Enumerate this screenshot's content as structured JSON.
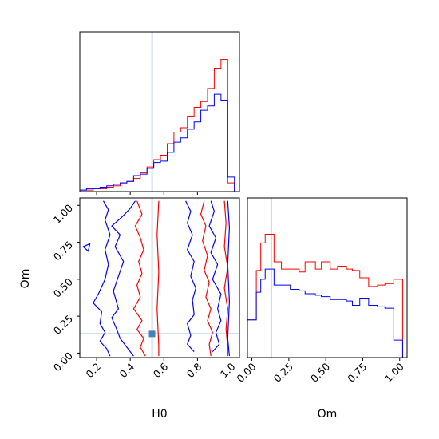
{
  "chart_data": [
    {
      "panel": "H0 marginal",
      "type": "histogram",
      "xlim": [
        0.1,
        1.05
      ],
      "ylim": [
        0,
        1.1
      ],
      "ticks": [
        0.2,
        0.4,
        0.6,
        0.8,
        1.0
      ],
      "truth": 0.53,
      "bin_edges": [
        0.1,
        0.14,
        0.18,
        0.22,
        0.26,
        0.3,
        0.34,
        0.38,
        0.42,
        0.46,
        0.5,
        0.54,
        0.58,
        0.62,
        0.66,
        0.7,
        0.74,
        0.78,
        0.82,
        0.86,
        0.9,
        0.94,
        0.98,
        1.02
      ],
      "series": [
        {
          "color": "#ff0000",
          "values": [
            0.01,
            0.01,
            0.02,
            0.02,
            0.03,
            0.04,
            0.06,
            0.07,
            0.09,
            0.13,
            0.17,
            0.22,
            0.25,
            0.33,
            0.41,
            0.44,
            0.52,
            0.58,
            0.62,
            0.71,
            0.85,
            0.91,
            0.06
          ]
        },
        {
          "color": "#0000ff",
          "values": [
            0.01,
            0.02,
            0.02,
            0.03,
            0.04,
            0.05,
            0.06,
            0.07,
            0.11,
            0.12,
            0.16,
            0.2,
            0.21,
            0.27,
            0.34,
            0.37,
            0.43,
            0.48,
            0.56,
            0.59,
            0.67,
            0.63,
            0.1
          ]
        }
      ]
    },
    {
      "panel": "joint H0 vs Om",
      "type": "contour",
      "xlabel": "H0",
      "ylabel": "Om",
      "xlim": [
        0.1,
        1.05
      ],
      "ylim": [
        -0.03,
        1.05
      ],
      "xticks": [
        0.2,
        0.4,
        0.6,
        0.8,
        1.0
      ],
      "yticks": [
        0.0,
        0.25,
        0.5,
        0.75,
        1.0
      ],
      "truth": {
        "H0": 0.53,
        "Om": 0.13
      },
      "series": [
        {
          "color": "#0000ff",
          "contours": [
            [
              [
                0.24,
                1.03
              ],
              [
                0.27,
                0.97
              ],
              [
                0.25,
                0.9
              ],
              [
                0.28,
                0.8
              ],
              [
                0.25,
                0.7
              ],
              [
                0.27,
                0.6
              ],
              [
                0.25,
                0.5
              ],
              [
                0.21,
                0.4
              ],
              [
                0.18,
                0.34
              ],
              [
                0.23,
                0.28
              ],
              [
                0.22,
                0.2
              ],
              [
                0.25,
                0.14
              ],
              [
                0.22,
                0.08
              ],
              [
                0.26,
                0.03
              ],
              [
                0.28,
                -0.02
              ]
            ],
            [
              [
                0.43,
                1.03
              ],
              [
                0.4,
                0.98
              ],
              [
                0.35,
                0.92
              ],
              [
                0.29,
                0.86
              ],
              [
                0.34,
                0.8
              ],
              [
                0.31,
                0.72
              ],
              [
                0.36,
                0.62
              ],
              [
                0.33,
                0.52
              ],
              [
                0.3,
                0.42
              ],
              [
                0.33,
                0.3
              ],
              [
                0.29,
                0.24
              ],
              [
                0.32,
                0.16
              ],
              [
                0.34,
                0.1
              ],
              [
                0.38,
                0.04
              ],
              [
                0.42,
                -0.02
              ]
            ],
            [
              [
                0.73,
                1.03
              ],
              [
                0.76,
                0.96
              ],
              [
                0.74,
                0.88
              ],
              [
                0.77,
                0.8
              ],
              [
                0.74,
                0.7
              ],
              [
                0.78,
                0.62
              ],
              [
                0.76,
                0.52
              ],
              [
                0.79,
                0.44
              ],
              [
                0.77,
                0.36
              ],
              [
                0.78,
                0.26
              ],
              [
                0.74,
                0.2
              ],
              [
                0.76,
                0.12
              ],
              [
                0.74,
                0.06
              ],
              [
                0.78,
                0.01
              ]
            ],
            [
              [
                0.88,
                1.03
              ],
              [
                0.9,
                0.96
              ],
              [
                0.87,
                0.86
              ],
              [
                0.91,
                0.78
              ],
              [
                0.88,
                0.68
              ],
              [
                0.92,
                0.6
              ],
              [
                0.89,
                0.5
              ],
              [
                0.94,
                0.4
              ],
              [
                0.92,
                0.3
              ],
              [
                0.94,
                0.22
              ],
              [
                0.91,
                0.14
              ],
              [
                0.93,
                0.06
              ],
              [
                0.89,
                0.01
              ]
            ],
            [
              [
                0.98,
                1.03
              ],
              [
                0.99,
                0.85
              ],
              [
                0.98,
                0.6
              ],
              [
                0.99,
                0.35
              ],
              [
                0.98,
                0.1
              ],
              [
                0.99,
                -0.02
              ]
            ]
          ]
        },
        {
          "color": "#ff0000",
          "contours": [
            [
              [
                0.44,
                1.03
              ],
              [
                0.47,
                0.94
              ],
              [
                0.43,
                0.86
              ],
              [
                0.46,
                0.78
              ],
              [
                0.48,
                0.7
              ],
              [
                0.45,
                0.62
              ],
              [
                0.47,
                0.54
              ],
              [
                0.44,
                0.46
              ],
              [
                0.46,
                0.38
              ],
              [
                0.42,
                0.3
              ],
              [
                0.47,
                0.22
              ],
              [
                0.44,
                0.16
              ],
              [
                0.48,
                0.1
              ],
              [
                0.46,
                0.04
              ],
              [
                0.49,
                -0.02
              ]
            ],
            [
              [
                0.57,
                1.03
              ],
              [
                0.56,
                0.8
              ],
              [
                0.57,
                0.55
              ],
              [
                0.56,
                0.3
              ],
              [
                0.57,
                0.05
              ],
              [
                0.57,
                -0.02
              ]
            ],
            [
              [
                0.84,
                1.03
              ],
              [
                0.82,
                0.94
              ],
              [
                0.85,
                0.86
              ],
              [
                0.83,
                0.76
              ],
              [
                0.86,
                0.66
              ],
              [
                0.84,
                0.56
              ],
              [
                0.87,
                0.48
              ],
              [
                0.85,
                0.38
              ],
              [
                0.88,
                0.3
              ],
              [
                0.86,
                0.22
              ],
              [
                0.89,
                0.14
              ],
              [
                0.87,
                0.06
              ],
              [
                0.88,
                -0.02
              ]
            ],
            [
              [
                0.96,
                1.03
              ],
              [
                0.97,
                0.88
              ],
              [
                0.96,
                0.72
              ],
              [
                0.98,
                0.58
              ],
              [
                0.96,
                0.44
              ],
              [
                0.98,
                0.3
              ],
              [
                0.97,
                0.16
              ],
              [
                0.98,
                0.04
              ],
              [
                0.98,
                -0.02
              ]
            ]
          ]
        }
      ]
    },
    {
      "panel": "Om marginal",
      "type": "histogram",
      "xlim": [
        -0.03,
        1.05
      ],
      "ylim": [
        0,
        1.1
      ],
      "ticks": [
        0.0,
        0.25,
        0.5,
        0.75,
        1.0
      ],
      "truth": 0.13,
      "bin_edges": [
        -0.03,
        0.03,
        0.06,
        0.09,
        0.15,
        0.2,
        0.26,
        0.32,
        0.36,
        0.43,
        0.47,
        0.53,
        0.58,
        0.64,
        0.68,
        0.73,
        0.79,
        0.85,
        0.9,
        0.96,
        1.02
      ],
      "series": [
        {
          "color": "#ff0000",
          "values": [
            0.26,
            0.6,
            0.79,
            0.85,
            0.66,
            0.61,
            0.61,
            0.59,
            0.66,
            0.61,
            0.66,
            0.61,
            0.63,
            0.61,
            0.6,
            0.55,
            0.49,
            0.5,
            0.51,
            0.54
          ]
        },
        {
          "color": "#0000ff",
          "values": [
            0.26,
            0.45,
            0.54,
            0.61,
            0.5,
            0.5,
            0.47,
            0.46,
            0.44,
            0.43,
            0.42,
            0.4,
            0.4,
            0.39,
            0.36,
            0.41,
            0.36,
            0.35,
            0.34,
            0.12
          ]
        }
      ]
    }
  ]
}
